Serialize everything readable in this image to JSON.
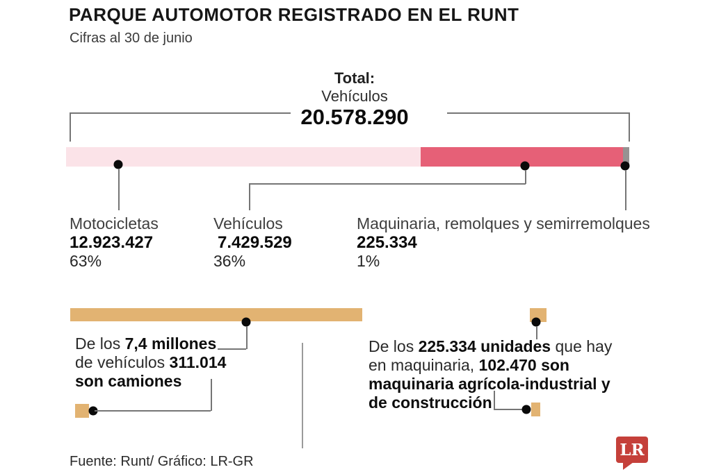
{
  "header": {
    "title": "PARQUE AUTOMOTOR REGISTRADO EN EL RUNT",
    "subtitle": "Cifras al 30 de junio"
  },
  "total": {
    "label_line1": "Total:",
    "label_line2": "Vehículos",
    "value": "20.578.290"
  },
  "stats": [
    {
      "label": "Motocicletas",
      "value": "12.923.427",
      "pct": "63%"
    },
    {
      "label": "Vehículos",
      "value": "7.429.529",
      "pct": "36%"
    },
    {
      "label": "Maquinaria, remolques y semirremolques",
      "value": "225.334",
      "pct": "1%"
    }
  ],
  "annotations": {
    "camiones": [
      [
        {
          "t": "De los ",
          "b": 0
        },
        {
          "t": "7,4 millones",
          "b": 1
        }
      ],
      [
        {
          "t": "de vehículos ",
          "b": 0
        },
        {
          "t": "311.014",
          "b": 1
        }
      ],
      [
        {
          "t": "son camiones",
          "b": 1
        }
      ]
    ],
    "maquinaria": [
      [
        {
          "t": "De los ",
          "b": 0
        },
        {
          "t": "225.334 unidades",
          "b": 1
        },
        {
          "t": " que hay",
          "b": 0
        }
      ],
      [
        {
          "t": "en maquinaria, ",
          "b": 0
        },
        {
          "t": "102.470 son",
          "b": 1
        }
      ],
      [
        {
          "t": "maquinaria agrícola-industrial y",
          "b": 1
        }
      ],
      [
        {
          "t": "de construcción",
          "b": 1
        }
      ]
    ]
  },
  "footer": {
    "source": "Fuente: Runt/ Gráfico: LR-GR",
    "logo_text": "LR"
  },
  "colors": {
    "light_pink": "#fbe3e8",
    "rose_red": "#e66077",
    "gray_segment": "#969292",
    "tan": "#e2b372",
    "logo_red": "#c5403a"
  },
  "chart_data": [
    {
      "type": "bar",
      "stacked": true,
      "title": "PARQUE AUTOMOTOR REGISTRADO EN EL RUNT",
      "subtitle": "Cifras al 30 de junio",
      "total_label": "Total: Vehículos",
      "total": 20578290,
      "categories": [
        "Motocicletas",
        "Vehículos",
        "Maquinaria, remolques y semirremolques"
      ],
      "values": [
        12923427,
        7429529,
        225334
      ],
      "percentages": [
        63,
        36,
        1
      ]
    },
    {
      "type": "bar",
      "note": "De los 7,4 millones de vehículos 311.014 son camiones",
      "categories": [
        "Vehículos totales",
        "Camiones"
      ],
      "values": [
        7400000,
        311014
      ]
    },
    {
      "type": "bar",
      "note": "De los 225.334 unidades que hay en maquinaria, 102.470 son maquinaria agrícola-industrial y de construcción",
      "categories": [
        "Maquinaria total",
        "Maquinaria agrícola-industrial y de construcción"
      ],
      "values": [
        225334,
        102470
      ]
    }
  ]
}
